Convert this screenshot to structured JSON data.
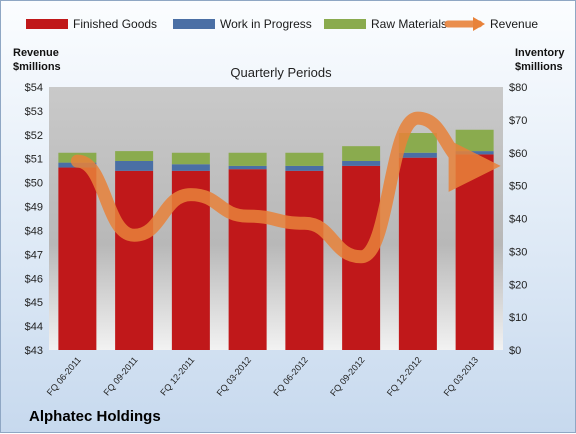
{
  "chart_data": {
    "type": "bar",
    "title": "Quarterly Periods",
    "company": "Alphatec Holdings",
    "left_axis": {
      "title_line1": "Revenue",
      "title_line2": "$millions",
      "ylim": [
        43,
        54
      ],
      "ticks": [
        "$43",
        "$44",
        "$45",
        "$46",
        "$47",
        "$48",
        "$49",
        "$50",
        "$51",
        "$52",
        "$53",
        "$54"
      ]
    },
    "right_axis": {
      "title_line1": "Inventory",
      "title_line2": "$millions",
      "ylim": [
        0,
        80
      ],
      "ticks": [
        "$0",
        "$10",
        "$20",
        "$30",
        "$40",
        "$50",
        "$60",
        "$70",
        "$80"
      ]
    },
    "categories": [
      "FQ 06-2011",
      "FQ 09-2011",
      "FQ 12-2011",
      "FQ 03-2012",
      "FQ 06-2012",
      "FQ 09-2012",
      "FQ 12-2012",
      "FQ 03-2013"
    ],
    "series": [
      {
        "name": "Finished Goods",
        "axis": "right",
        "color": "#c0181a",
        "values": [
          55.5,
          54.5,
          54.5,
          55.0,
          54.5,
          56.0,
          58.5,
          59.5
        ]
      },
      {
        "name": "Work in Progress",
        "axis": "right",
        "color": "#4a6fa5",
        "values": [
          1.5,
          3.0,
          2.0,
          1.0,
          1.5,
          1.5,
          1.5,
          1.0
        ]
      },
      {
        "name": "Raw Materials",
        "axis": "right",
        "color": "#8aab4e",
        "values": [
          3.0,
          3.0,
          3.5,
          4.0,
          4.0,
          4.5,
          6.0,
          6.5
        ]
      },
      {
        "name": "Revenue",
        "axis": "left",
        "color": "#e8823a",
        "type": "line",
        "values": [
          50.9,
          47.8,
          49.5,
          48.6,
          48.3,
          46.9,
          52.7,
          50.7
        ]
      }
    ],
    "legend_position": "top",
    "grid": false
  }
}
